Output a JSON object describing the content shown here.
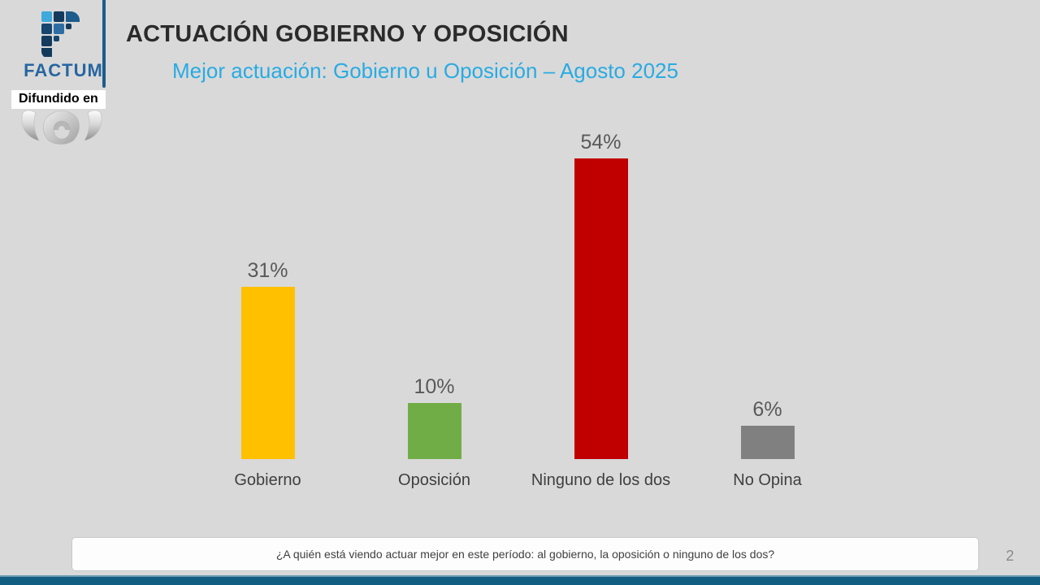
{
  "slide": {
    "background_color": "#d9d9d9",
    "page_number": "2",
    "footer_bar_color": "#115e82"
  },
  "header": {
    "logo_wordmark": "FACTUM",
    "title": "ACTUACIÓN GOBIERNO Y OPOSICIÓN",
    "subtitle": "Mejor actuación: Gobierno u Oposición – Agosto 2025",
    "subtitle_color": "#29abe2",
    "difundido_label": "Difundido en",
    "broadcaster_logo_icon": "vtv-ribbon-logo"
  },
  "chart_data": {
    "type": "bar",
    "title": "Mejor actuación: Gobierno u Oposición – Agosto 2025",
    "categories": [
      "Gobierno",
      "Oposición",
      "Ninguno de los dos",
      "No Opina"
    ],
    "values": [
      31,
      10,
      54,
      6
    ],
    "value_labels": [
      "31%",
      "10%",
      "54%",
      "6%"
    ],
    "bar_colors": [
      "#ffc000",
      "#70ad47",
      "#c00000",
      "#808080"
    ],
    "xlabel": "",
    "ylabel": "",
    "ylim": [
      0,
      60
    ],
    "grid": false,
    "legend": false,
    "value_label_color": "#595959"
  },
  "footer": {
    "question": "¿A quién está viendo actuar mejor en este período: al gobierno, la oposición o ninguno de los dos?"
  }
}
